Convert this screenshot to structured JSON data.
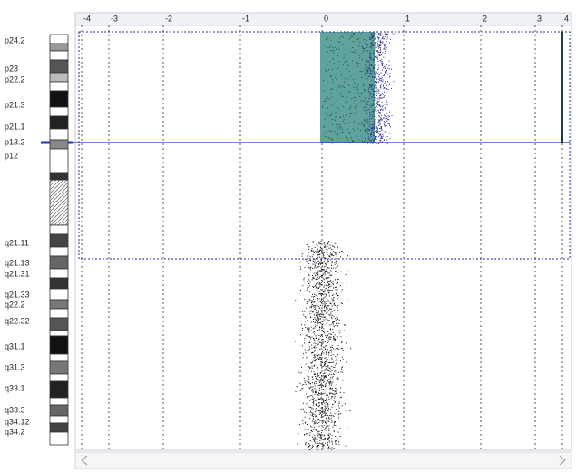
{
  "axis": {
    "ticks": [
      -4,
      -3,
      -2,
      -1,
      0,
      1,
      2,
      3,
      4
    ]
  },
  "bands": [
    "p24.2",
    "p23",
    "p22.2",
    "p21.3",
    "p21.1",
    "p13.2",
    "p12",
    "q21.11",
    "q21.13",
    "q21.31",
    "q21.33",
    "q22.2",
    "q22.32",
    "q31.1",
    "q31.3",
    "q33.1",
    "q33.3",
    "q34.12",
    "q34.2"
  ]
}
